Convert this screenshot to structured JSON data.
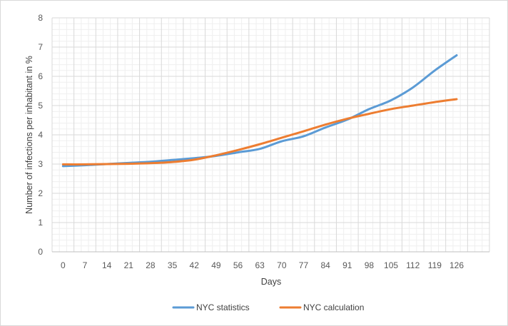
{
  "chart_data": {
    "type": "line",
    "title": "",
    "xlabel": "Days",
    "ylabel": "Number of infections per inhabitant in %",
    "x": [
      0,
      7,
      14,
      21,
      28,
      35,
      42,
      49,
      56,
      63,
      70,
      77,
      84,
      91,
      98,
      105,
      112,
      119,
      126
    ],
    "x_tick_labels": [
      "0",
      "7",
      "14",
      "21",
      "28",
      "35",
      "42",
      "49",
      "56",
      "63",
      "70",
      "77",
      "84",
      "91",
      "98",
      "105",
      "112",
      "119",
      "126"
    ],
    "y_tick_labels": [
      "0",
      "1",
      "2",
      "3",
      "4",
      "5",
      "6",
      "7",
      "8"
    ],
    "ylim": [
      0,
      8
    ],
    "grid": true,
    "legend_position": "bottom",
    "series": [
      {
        "name": "NYC statistics",
        "color": "#5B9BD5",
        "values": [
          2.93,
          2.96,
          3.0,
          3.04,
          3.08,
          3.14,
          3.2,
          3.28,
          3.4,
          3.52,
          3.78,
          3.95,
          4.25,
          4.52,
          4.88,
          5.18,
          5.62,
          6.2,
          6.72
        ]
      },
      {
        "name": "NYC calculation",
        "color": "#ED7D31",
        "values": [
          2.99,
          2.99,
          3.0,
          3.01,
          3.03,
          3.07,
          3.15,
          3.3,
          3.48,
          3.68,
          3.9,
          4.12,
          4.35,
          4.55,
          4.72,
          4.88,
          5.0,
          5.12,
          5.22
        ]
      }
    ]
  }
}
